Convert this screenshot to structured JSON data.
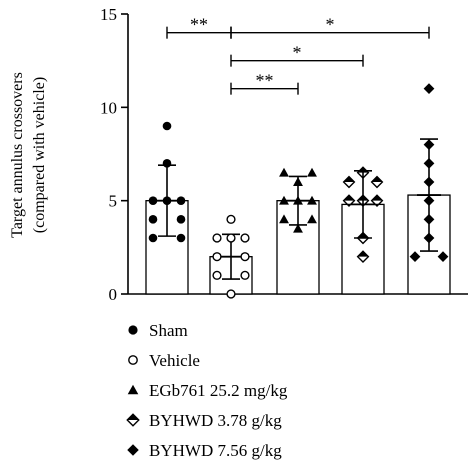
{
  "chart_data": {
    "type": "bar",
    "ylabel_lines": [
      "Target annulus crossovers",
      "(compared with vehicle)"
    ],
    "ylim": [
      0,
      15
    ],
    "yticks": [
      0,
      5,
      10,
      15
    ],
    "grid": false,
    "legend_placement": "bottom",
    "categories": [
      "Sham",
      "Vehicle",
      "EGb761 25.2 mg/kg",
      "BYHWD 3.78 g/kg",
      "BYHWD 7.56 g/kg"
    ],
    "series": [
      {
        "name": "Sham",
        "marker": "filled-circle",
        "mean": 5.0,
        "sd": 1.9,
        "points": [
          9.0,
          7.0,
          5.0,
          5.0,
          5.0,
          4.0,
          4.0,
          3.0,
          3.0
        ]
      },
      {
        "name": "Vehicle",
        "marker": "open-circle",
        "mean": 2.0,
        "sd": 1.2,
        "points": [
          4.0,
          3.0,
          3.0,
          3.0,
          2.0,
          2.0,
          1.0,
          1.0,
          0.0
        ]
      },
      {
        "name": "EGb761 25.2 mg/kg",
        "marker": "filled-triangle",
        "mean": 5.0,
        "sd": 1.3,
        "points": [
          6.5,
          6.5,
          6.0,
          5.0,
          5.0,
          5.0,
          4.0,
          4.0,
          3.5
        ]
      },
      {
        "name": "BYHWD 3.78 g/kg",
        "marker": "half-diamond",
        "mean": 4.8,
        "sd": 1.8,
        "points": [
          6.5,
          6.0,
          6.0,
          5.0,
          5.0,
          5.0,
          3.0,
          2.0
        ]
      },
      {
        "name": "BYHWD 7.56 g/kg",
        "marker": "filled-diamond",
        "mean": 5.3,
        "sd": 3.0,
        "points": [
          11.0,
          8.0,
          7.0,
          6.0,
          5.0,
          4.0,
          3.0,
          2.0,
          2.0
        ]
      }
    ],
    "significance": [
      {
        "from": 0,
        "to": 1,
        "y": 14.0,
        "label": "**"
      },
      {
        "from": 1,
        "to": 4,
        "y": 14.0,
        "label": "*"
      },
      {
        "from": 1,
        "to": 3,
        "y": 12.5,
        "label": "*"
      },
      {
        "from": 1,
        "to": 2,
        "y": 11.0,
        "label": "**"
      }
    ]
  },
  "colors": {
    "ink": "#000000",
    "background": "#ffffff"
  }
}
